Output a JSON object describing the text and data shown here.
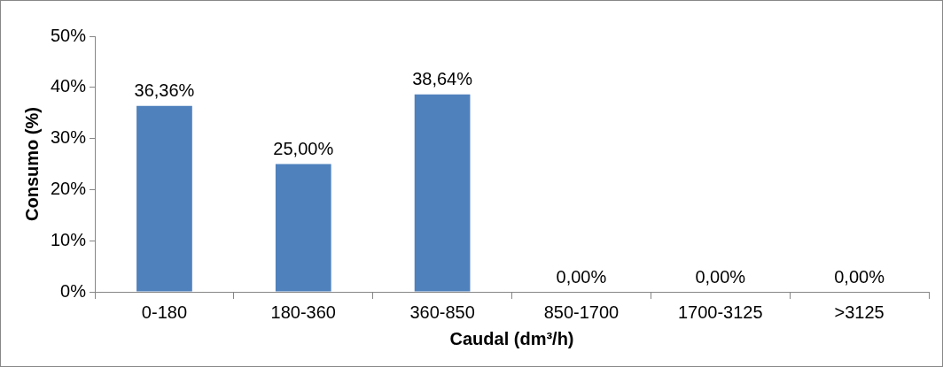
{
  "chart_data": {
    "type": "bar",
    "xlabel": "Caudal (dm³/h)",
    "ylabel": "Consumo (%)",
    "categories": [
      "0-180",
      "180-360",
      "360-850",
      "850-1700",
      "1700-3125",
      ">3125"
    ],
    "values": [
      36.36,
      25,
      38.64,
      0,
      0,
      0
    ],
    "value_labels": [
      "36,36%",
      "25,00%",
      "38,64%",
      "0,00%",
      "0,00%",
      "0,00%"
    ],
    "color": "#4f81bd",
    "ylim": [
      0,
      50
    ],
    "yticks": [
      {
        "value": 0,
        "label": "0%"
      },
      {
        "value": 10,
        "label": "10%"
      },
      {
        "value": 20,
        "label": "20%"
      },
      {
        "value": 30,
        "label": "30%"
      },
      {
        "value": 40,
        "label": "40%"
      },
      {
        "value": 50,
        "label": "50%"
      }
    ],
    "grid": false,
    "legend": false
  }
}
